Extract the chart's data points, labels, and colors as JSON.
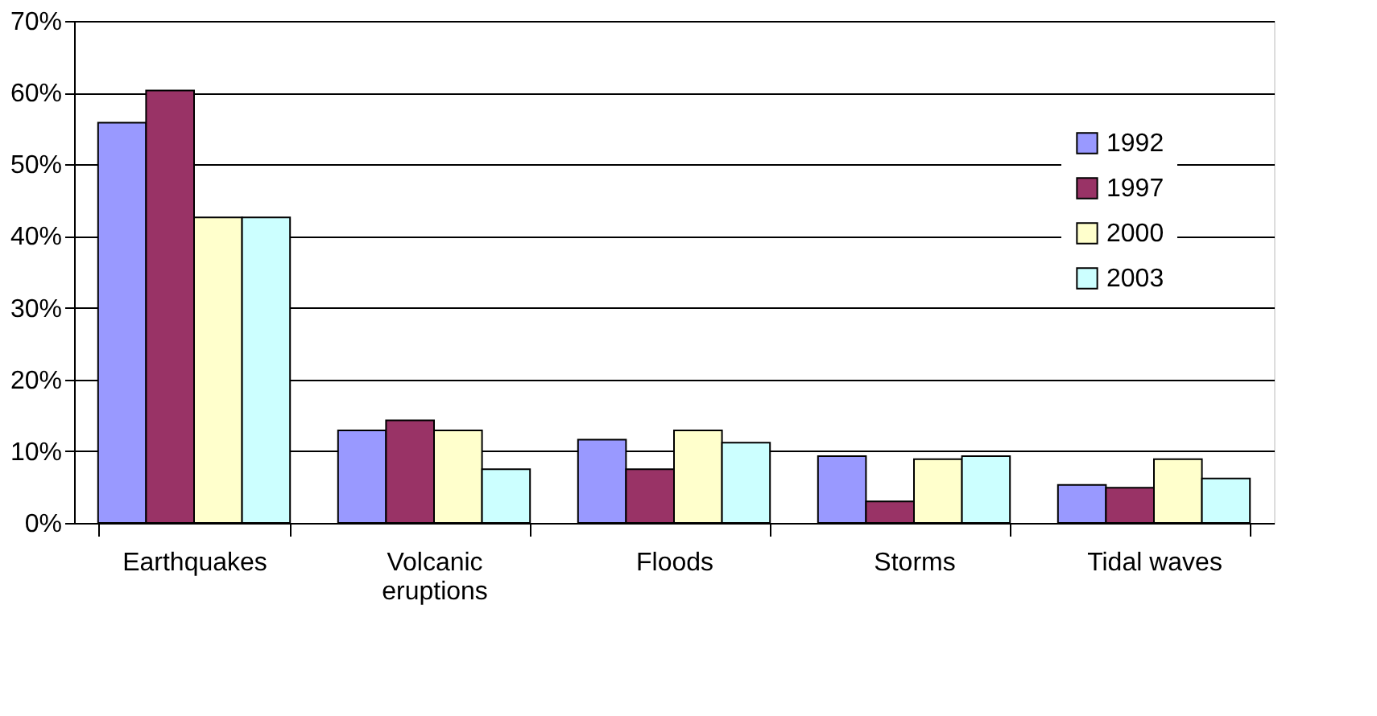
{
  "chart_data": {
    "type": "bar",
    "categories": [
      "Earthquakes",
      "Volcanic eruptions",
      "Floods",
      "Storms",
      "Tidal waves"
    ],
    "series": [
      {
        "name": "1992",
        "color": "#9999ff",
        "values": [
          55.8,
          12.9,
          11.6,
          9.3,
          5.3
        ]
      },
      {
        "name": "1997",
        "color": "#993366",
        "values": [
          60.3,
          14.3,
          7.5,
          3.0,
          4.9
        ]
      },
      {
        "name": "2000",
        "color": "#ffffcc",
        "values": [
          42.6,
          12.9,
          12.9,
          8.9,
          8.9
        ]
      },
      {
        "name": "2003",
        "color": "#ccffff",
        "values": [
          42.6,
          7.5,
          11.2,
          9.3,
          6.2
        ]
      }
    ],
    "ylim": [
      0,
      70
    ],
    "yticks": [
      {
        "value": 0,
        "label": "0%"
      },
      {
        "value": 10,
        "label": "10%"
      },
      {
        "value": 20,
        "label": "20%"
      },
      {
        "value": 30,
        "label": "30%"
      },
      {
        "value": 40,
        "label": "40%"
      },
      {
        "value": 50,
        "label": "50%"
      },
      {
        "value": 60,
        "label": "60%"
      },
      {
        "value": 70,
        "label": "70%"
      }
    ],
    "grid": "y",
    "legend": "top right"
  }
}
